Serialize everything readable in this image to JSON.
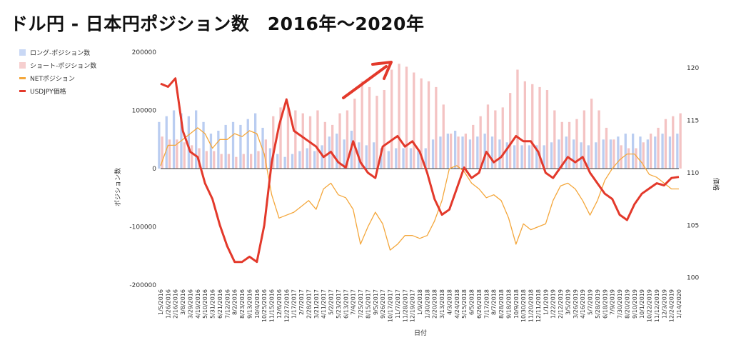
{
  "title": "ドル円 - 日本円ポジション数　2016年〜2020年",
  "colors": {
    "long": "#aec4ee",
    "short": "#f2b8b8",
    "net": "#f4a73c",
    "price": "#e3392b",
    "arrow": "#e3392b"
  },
  "chart_data": {
    "type": "bar",
    "title": "ドル円 - 日本円ポジション数　2016年〜2020年",
    "xlabel": "日付",
    "ylabel": "ポジション数",
    "y2label": "価格",
    "ylim": [
      -200000,
      200000
    ],
    "y2lim": [
      99.3,
      121.5
    ],
    "yticks": [
      "200000",
      "100000",
      "0",
      "-100000",
      "-200000"
    ],
    "y2ticks": [
      "120",
      "115",
      "110",
      "105",
      "100"
    ],
    "categories": [
      "1/5/2016",
      "1/26/2016",
      "2/16/2016",
      "3/8/2016",
      "3/29/2016",
      "4/19/2016",
      "5/10/2016",
      "5/31/2016",
      "6/21/2016",
      "7/12/2016",
      "8/2/2016",
      "8/23/2016",
      "9/13/2016",
      "10/4/2016",
      "10/25/2016",
      "11/15/2016",
      "12/6/2016",
      "12/27/2016",
      "1/17/2017",
      "2/7/2017",
      "2/28/2017",
      "3/21/2017",
      "4/11/2017",
      "5/2/2017",
      "5/23/2017",
      "6/13/2017",
      "7/4/2017",
      "7/25/2017",
      "8/15/2017",
      "9/5/2017",
      "9/26/2017",
      "10/17/2017",
      "11/7/2017",
      "11/28/2017",
      "12/19/2017",
      "1/9/2018",
      "1/30/2018",
      "2/20/2018",
      "3/13/2018",
      "4/3/2018",
      "4/24/2018",
      "5/15/2018",
      "6/5/2018",
      "6/26/2018",
      "7/17/2018",
      "8/7/2018",
      "8/28/2018",
      "9/18/2018",
      "10/9/2018",
      "10/30/2018",
      "11/20/2018",
      "12/11/2018",
      "1/1/2019",
      "1/22/2019",
      "2/12/2019",
      "3/5/2019",
      "3/26/2019",
      "4/16/2019",
      "5/7/2019",
      "5/28/2019",
      "6/18/2019",
      "7/9/2019",
      "7/30/2019",
      "8/20/2019",
      "9/10/2019",
      "10/1/2019",
      "10/22/2019",
      "11/12/2019",
      "12/3/2019",
      "12/24/2019",
      "1/14/2020"
    ],
    "series": [
      {
        "name": "ロング-ポジション数",
        "type": "bar",
        "values": [
          80000,
          90000,
          100000,
          95000,
          90000,
          100000,
          80000,
          60000,
          65000,
          75000,
          80000,
          75000,
          85000,
          95000,
          70000,
          35000,
          25000,
          20000,
          25000,
          30000,
          35000,
          30000,
          40000,
          55000,
          60000,
          50000,
          65000,
          45000,
          40000,
          45000,
          35000,
          30000,
          35000,
          35000,
          35000,
          30000,
          35000,
          50000,
          55000,
          60000,
          65000,
          55000,
          50000,
          55000,
          60000,
          55000,
          50000,
          45000,
          40000,
          40000,
          40000,
          40000,
          40000,
          45000,
          50000,
          55000,
          50000,
          45000,
          40000,
          45000,
          50000,
          50000,
          55000,
          60000,
          60000,
          55000,
          50000,
          55000,
          60000,
          55000,
          60000
        ]
      },
      {
        "name": "ショート-ポジション数",
        "type": "bar",
        "values": [
          55000,
          50000,
          50000,
          45000,
          40000,
          35000,
          30000,
          30000,
          25000,
          25000,
          20000,
          25000,
          25000,
          30000,
          50000,
          90000,
          105000,
          110000,
          100000,
          95000,
          90000,
          100000,
          80000,
          75000,
          95000,
          100000,
          120000,
          150000,
          140000,
          125000,
          135000,
          170000,
          180000,
          175000,
          165000,
          155000,
          150000,
          140000,
          110000,
          60000,
          55000,
          60000,
          75000,
          90000,
          110000,
          100000,
          105000,
          130000,
          170000,
          150000,
          145000,
          140000,
          135000,
          100000,
          80000,
          80000,
          85000,
          100000,
          120000,
          100000,
          70000,
          50000,
          40000,
          35000,
          35000,
          45000,
          60000,
          70000,
          85000,
          90000,
          95000
        ]
      },
      {
        "name": "NETポジション",
        "type": "line",
        "values": [
          5000,
          40000,
          40000,
          50000,
          60000,
          70000,
          60000,
          35000,
          50000,
          50000,
          60000,
          55000,
          65000,
          60000,
          25000,
          -45000,
          -85000,
          -80000,
          -75000,
          -65000,
          -55000,
          -70000,
          -35000,
          -25000,
          -45000,
          -50000,
          -70000,
          -130000,
          -100000,
          -75000,
          -95000,
          -140000,
          -130000,
          -115000,
          -115000,
          -120000,
          -115000,
          -90000,
          -55000,
          0,
          5000,
          -5000,
          -25000,
          -35000,
          -50000,
          -45000,
          -55000,
          -85000,
          -130000,
          -95000,
          -105000,
          -100000,
          -95000,
          -55000,
          -30000,
          -25000,
          -35000,
          -55000,
          -80000,
          -55000,
          -20000,
          0,
          15000,
          25000,
          25000,
          10000,
          -10000,
          -15000,
          -25000,
          -35000,
          -35000
        ]
      },
      {
        "name": "USDJPY価格",
        "type": "line",
        "axis": "right",
        "values": [
          118.5,
          118.2,
          119.0,
          114.0,
          112.0,
          111.5,
          109.0,
          107.5,
          105.0,
          103.0,
          101.5,
          101.5,
          102.0,
          101.5,
          105.0,
          111.0,
          114.5,
          117.0,
          114.0,
          113.5,
          113.0,
          112.5,
          111.5,
          112.0,
          111.0,
          110.5,
          113.0,
          111.0,
          110.0,
          109.5,
          112.5,
          113.0,
          113.5,
          112.5,
          113.0,
          112.0,
          110.0,
          107.5,
          106.0,
          106.5,
          108.5,
          110.5,
          109.5,
          110.0,
          112.0,
          111.0,
          111.5,
          112.5,
          113.5,
          113.0,
          113.0,
          112.0,
          110.0,
          109.5,
          110.5,
          111.5,
          111.0,
          111.5,
          110.0,
          109.0,
          108.0,
          107.5,
          106.0,
          105.5,
          107.0,
          108.0,
          108.5,
          109.0,
          108.8,
          109.5,
          109.6
        ]
      }
    ],
    "legend": "left"
  }
}
